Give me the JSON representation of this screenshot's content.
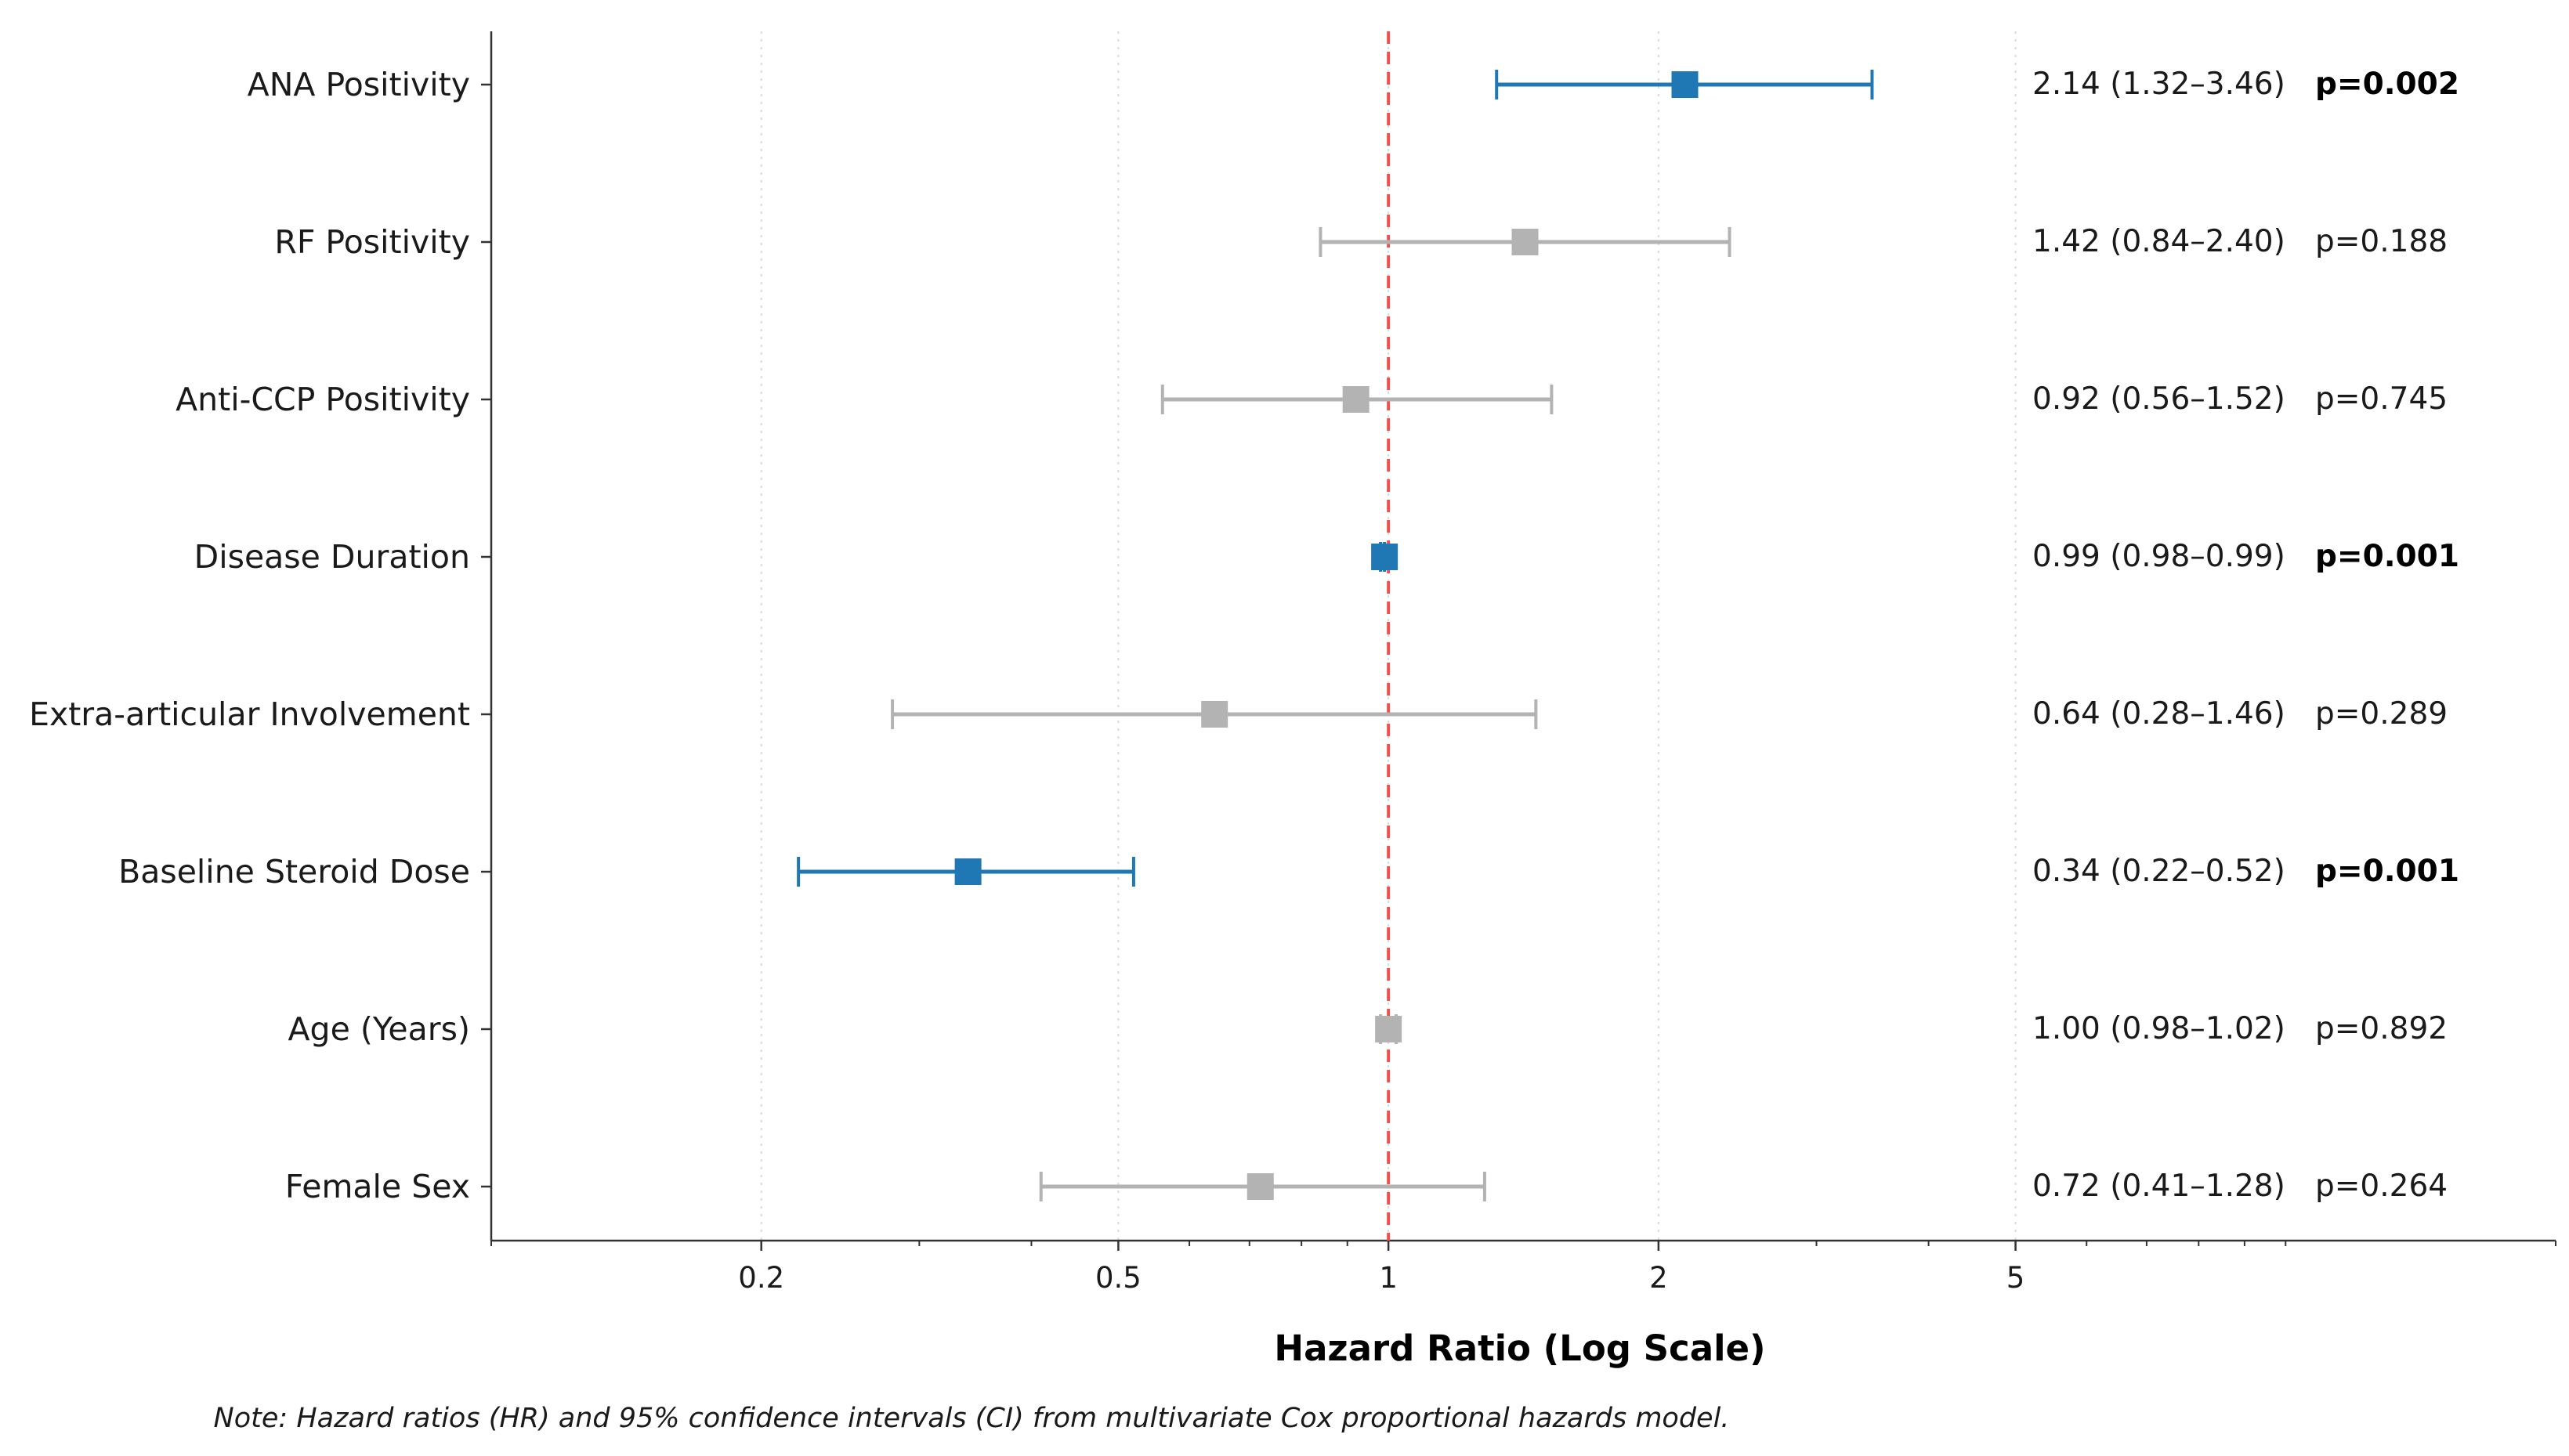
{
  "colors": {
    "significant": "#1f77b4",
    "nonsignificant": "#b3b3b3",
    "reference_line": "#ef5350",
    "axis": "#333333",
    "grid": "#d9d9d9"
  },
  "chart_data": {
    "type": "forest",
    "x_scale": "log",
    "xlim": [
      0.1,
      20
    ],
    "reference_value": 1,
    "grid": "vertical dotted",
    "xticks": [
      0.2,
      0.5,
      1,
      2,
      5
    ],
    "xtick_labels": [
      "0.2",
      "0.5",
      "1",
      "2",
      "5"
    ],
    "xlabel": "Hazard Ratio (Log Scale)",
    "note": "Note: Hazard ratios (HR) and 95% confidence intervals (CI) from multivariate Cox proportional hazards model.",
    "rows": [
      {
        "label": "ANA Positivity",
        "hr": 2.14,
        "ci_low": 1.32,
        "ci_high": 3.46,
        "hr_text": "2.14 (1.32–3.46)",
        "p_text": "p=0.002",
        "significant": true
      },
      {
        "label": "RF Positivity",
        "hr": 1.42,
        "ci_low": 0.84,
        "ci_high": 2.4,
        "hr_text": "1.42 (0.84–2.40)",
        "p_text": "p=0.188",
        "significant": false
      },
      {
        "label": "Anti-CCP Positivity",
        "hr": 0.92,
        "ci_low": 0.56,
        "ci_high": 1.52,
        "hr_text": "0.92 (0.56–1.52)",
        "p_text": "p=0.745",
        "significant": false
      },
      {
        "label": "Disease Duration",
        "hr": 0.99,
        "ci_low": 0.98,
        "ci_high": 0.99,
        "hr_text": "0.99 (0.98–0.99)",
        "p_text": "p=0.001",
        "significant": true
      },
      {
        "label": "Extra-articular Involvement",
        "hr": 0.64,
        "ci_low": 0.28,
        "ci_high": 1.46,
        "hr_text": "0.64 (0.28–1.46)",
        "p_text": "p=0.289",
        "significant": false
      },
      {
        "label": "Baseline Steroid Dose",
        "hr": 0.34,
        "ci_low": 0.22,
        "ci_high": 0.52,
        "hr_text": "0.34 (0.22–0.52)",
        "p_text": "p=0.001",
        "significant": true
      },
      {
        "label": "Age (Years)",
        "hr": 1.0,
        "ci_low": 0.98,
        "ci_high": 1.02,
        "hr_text": "1.00 (0.98–1.02)",
        "p_text": "p=0.892",
        "significant": false
      },
      {
        "label": "Female Sex",
        "hr": 0.72,
        "ci_low": 0.41,
        "ci_high": 1.28,
        "hr_text": "0.72 (0.41–1.28)",
        "p_text": "p=0.264",
        "significant": false
      }
    ]
  }
}
